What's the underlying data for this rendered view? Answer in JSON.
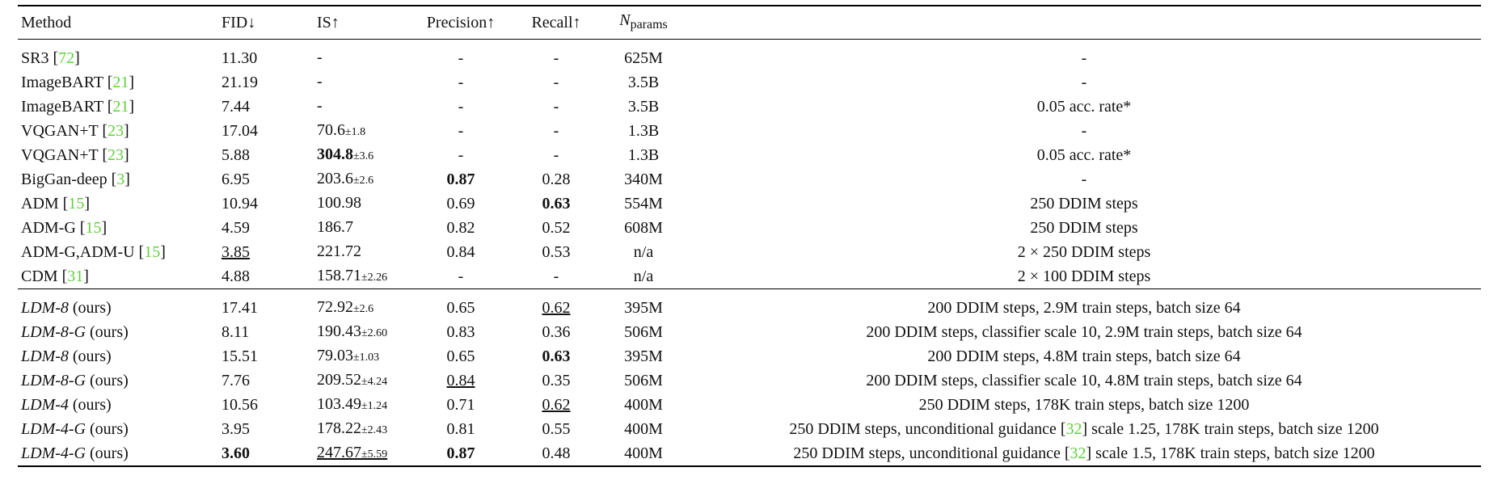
{
  "header": {
    "method": "Method",
    "fid": "FID↓",
    "is": "IS↑",
    "precision": "Precision↑",
    "recall": "Recall↑",
    "params_n": "N",
    "params_sub": "params"
  },
  "baselines": [
    {
      "name": "SR3 [",
      "cite": "72",
      "close": "]",
      "fid": "11.30",
      "is": "-",
      "is_pm": "",
      "precision": "-",
      "recall": "-",
      "params": "625M",
      "notes": "-"
    },
    {
      "name": "ImageBART [",
      "cite": "21",
      "close": "]",
      "fid": "21.19",
      "is": "-",
      "is_pm": "",
      "precision": "-",
      "recall": "-",
      "params": "3.5B",
      "notes": "-"
    },
    {
      "name": "ImageBART [",
      "cite": "21",
      "close": "]",
      "fid": "7.44",
      "is": "-",
      "is_pm": "",
      "precision": "-",
      "recall": "-",
      "params": "3.5B",
      "notes": "0.05 acc. rate*"
    },
    {
      "name": "VQGAN+T [",
      "cite": "23",
      "close": "]",
      "fid": "17.04",
      "is": "70.6",
      "is_pm": "±1.8",
      "precision": "-",
      "recall": "-",
      "params": "1.3B",
      "notes": "-"
    },
    {
      "name": "VQGAN+T [",
      "cite": "23",
      "close": "]",
      "fid": "5.88",
      "is": "304.8",
      "is_pm": "±3.6",
      "precision": "-",
      "recall": "-",
      "params": "1.3B",
      "notes": "0.05 acc. rate*"
    },
    {
      "name": "BigGan-deep [",
      "cite": "3",
      "close": "]",
      "fid": "6.95",
      "is": "203.6",
      "is_pm": "±2.6",
      "precision": "0.87",
      "recall": "0.28",
      "params": "340M",
      "notes": "-"
    },
    {
      "name": "ADM [",
      "cite": "15",
      "close": "]",
      "fid": "10.94",
      "is": "100.98",
      "is_pm": "",
      "precision": "0.69",
      "recall": "0.63",
      "params": "554M",
      "notes": "250 DDIM steps"
    },
    {
      "name": "ADM-G [",
      "cite": "15",
      "close": "]",
      "fid": "4.59",
      "is": "186.7",
      "is_pm": "",
      "precision": "0.82",
      "recall": "0.52",
      "params": "608M",
      "notes": "250 DDIM steps"
    },
    {
      "name": "ADM-G,ADM-U [",
      "cite": "15",
      "close": "]",
      "fid": "3.85",
      "is": "221.72",
      "is_pm": "",
      "precision": "0.84",
      "recall": "0.53",
      "params": "n/a",
      "notes": "2 × 250 DDIM steps"
    },
    {
      "name": "CDM [",
      "cite": "31",
      "close": "]",
      "fid": "4.88",
      "is": "158.71",
      "is_pm": "±2.26",
      "precision": "-",
      "recall": "-",
      "params": "n/a",
      "notes": "2 × 100 DDIM steps"
    }
  ],
  "ours": [
    {
      "model": "LDM-8",
      "suffix": " (ours)",
      "fid": "17.41",
      "is": "72.92",
      "is_pm": "±2.6",
      "precision": "0.65",
      "recall": "0.62",
      "params": "395M",
      "notes_pre": "200 DDIM steps, 2.9M train steps, batch size 64",
      "cite": "",
      "notes_post": ""
    },
    {
      "model": "LDM-8-G",
      "suffix": " (ours)",
      "fid": "8.11",
      "is": "190.43",
      "is_pm": "±2.60",
      "precision": "0.83",
      "recall": "0.36",
      "params": "506M",
      "notes_pre": "200 DDIM steps, classifier scale 10, 2.9M train steps, batch size 64",
      "cite": "",
      "notes_post": ""
    },
    {
      "model": "LDM-8",
      "suffix": " (ours)",
      "fid": "15.51",
      "is": "79.03",
      "is_pm": "±1.03",
      "precision": "0.65",
      "recall": "0.63",
      "params": "395M",
      "notes_pre": "200 DDIM steps, 4.8M train steps, batch size 64",
      "cite": "",
      "notes_post": ""
    },
    {
      "model": "LDM-8-G",
      "suffix": " (ours)",
      "fid": "7.76",
      "is": "209.52",
      "is_pm": "±4.24",
      "precision": "0.84",
      "recall": "0.35",
      "params": "506M",
      "notes_pre": "200 DDIM steps, classifier scale 10, 4.8M train steps, batch size 64",
      "cite": "",
      "notes_post": ""
    },
    {
      "model": "LDM-4",
      "suffix": " (ours)",
      "fid": "10.56",
      "is": "103.49",
      "is_pm": "±1.24",
      "precision": "0.71",
      "recall": "0.62",
      "params": "400M",
      "notes_pre": "250 DDIM steps, 178K train steps, batch size 1200",
      "cite": "",
      "notes_post": ""
    },
    {
      "model": "LDM-4-G",
      "suffix": " (ours)",
      "fid": "3.95",
      "is": "178.22",
      "is_pm": "±2.43",
      "precision": "0.81",
      "recall": "0.55",
      "params": "400M",
      "notes_pre": "250 DDIM steps, unconditional guidance [",
      "cite": "32",
      "notes_post": "] scale 1.25, 178K train steps, batch size 1200"
    },
    {
      "model": "LDM-4-G",
      "suffix": " (ours)",
      "fid": "3.60",
      "is": "247.67",
      "is_pm": "±5.59",
      "precision": "0.87",
      "recall": "0.48",
      "params": "400M",
      "notes_pre": "250 DDIM steps, unconditional guidance [",
      "cite": "32",
      "notes_post": "] scale 1.5, 178K train steps, batch size 1200"
    }
  ],
  "colors": {
    "citation": "#5fd13a",
    "text": "#111111"
  }
}
